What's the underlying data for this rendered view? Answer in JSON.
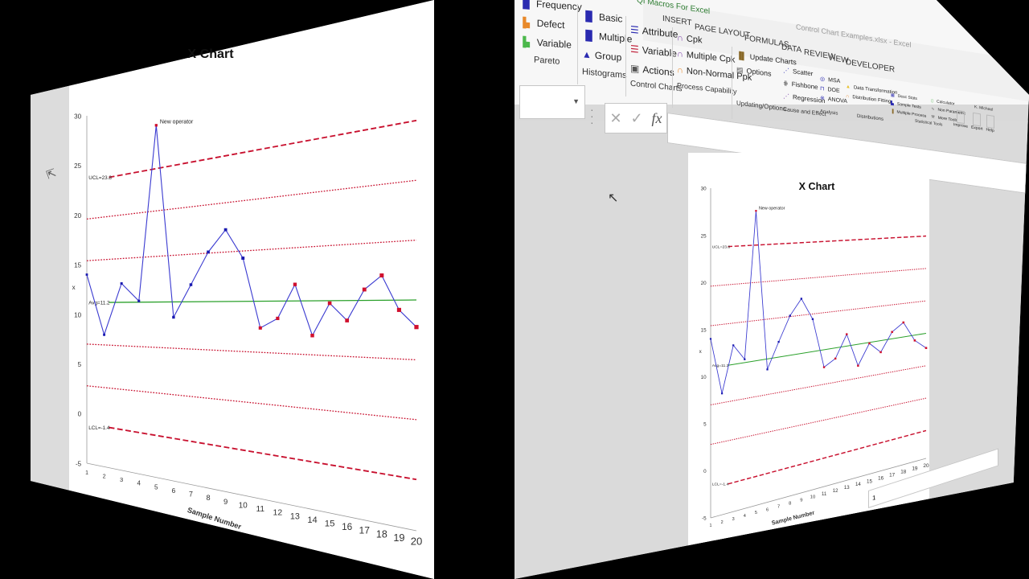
{
  "window": {
    "title": "Control Chart Examples.xlsx - Excel",
    "quick_access_hint": "QI Macros For Excel"
  },
  "ribbon": {
    "active_tab": "QI Macros For Excel",
    "tabs": [
      "INSERT",
      "PAGE LAYOUT",
      "FORMULAS",
      "DATA",
      "REVIEW",
      "VIEW",
      "DEVELOPER"
    ],
    "groups": [
      {
        "label": "Pareto",
        "items": [
          {
            "icon": "frequency-pareto-icon",
            "label": "Frequency",
            "color": "#2a2ab0"
          },
          {
            "icon": "defect-pareto-icon",
            "label": "Defect",
            "color": "#e8892a"
          },
          {
            "icon": "variable-pareto-icon",
            "label": "Variable",
            "color": "#4cb84c"
          }
        ]
      },
      {
        "label": "Histograms",
        "items": [
          {
            "icon": "basic-histogram-icon",
            "label": "Basic",
            "color": "#2a2ab0"
          },
          {
            "icon": "multiple-histogram-icon",
            "label": "Multiple",
            "color": "#2a2ab0"
          },
          {
            "icon": "group-histogram-icon",
            "label": "Group",
            "color": "#2a2ab0"
          }
        ]
      },
      {
        "label": "Control Charts",
        "items": [
          {
            "icon": "attribute-chart-icon",
            "label": "Attribute",
            "color": "#2a2ab0"
          },
          {
            "icon": "variable-chart-icon",
            "label": "Variable",
            "color": "#c0203a"
          },
          {
            "icon": "actions-icon",
            "label": "Actions",
            "color": "#555555"
          }
        ]
      },
      {
        "label": "Process Capability",
        "items": [
          {
            "icon": "cpk-icon",
            "label": "Cpk",
            "color": "#7a3aa8"
          },
          {
            "icon": "multiple-cpk-icon",
            "label": "Multiple Cpk",
            "color": "#7a3aa8"
          },
          {
            "icon": "non-normal-ppk-icon",
            "label": "Non-Normal Ppk",
            "color": "#e8892a"
          }
        ]
      },
      {
        "label": "Updating/Options",
        "items": [
          {
            "icon": "update-charts-icon",
            "label": "Update Charts",
            "color": "#8a6a2a"
          },
          {
            "icon": "options-icon",
            "label": "Options",
            "color": "#555555"
          }
        ]
      },
      {
        "label": "Cause and Effect",
        "items": [
          {
            "icon": "scatter-icon",
            "label": "Scatter",
            "color": "#2a2ab0"
          },
          {
            "icon": "fishbone-icon",
            "label": "Fishbone",
            "color": "#555555"
          },
          {
            "icon": "regression-icon",
            "label": "Regression",
            "color": "#7a3aa8"
          }
        ]
      },
      {
        "label": "Analysis",
        "items": [
          {
            "icon": "msa-icon",
            "label": "MSA",
            "color": "#2a2ab0"
          },
          {
            "icon": "doe-icon",
            "label": "DOE",
            "color": "#2a2ab0"
          },
          {
            "icon": "anova-icon",
            "label": "ANOVA",
            "color": "#2a2ab0"
          }
        ]
      },
      {
        "label": "Distributions",
        "items": [
          {
            "icon": "data-transformation-icon",
            "label": "Data Transformation",
            "color": "#e8c02a"
          },
          {
            "icon": "distribution-fitting-icon",
            "label": "Distribution Fitting",
            "color": "#e8892a"
          }
        ]
      },
      {
        "label": "Statistical Tools",
        "items": [
          {
            "icon": "desc-stats-icon",
            "label": "Desc Stats",
            "color": "#2a2ab0"
          },
          {
            "icon": "sample-tests-icon",
            "label": "Sample Tests",
            "color": "#2a2ab0"
          },
          {
            "icon": "multiple-process-icon",
            "label": "Multiple Process",
            "color": "#8a6a2a"
          },
          {
            "icon": "calculator-icon",
            "label": "Calculator",
            "color": "#4cb84c"
          },
          {
            "icon": "non-parametric-icon",
            "label": "Non Parametric",
            "color": "#555555"
          },
          {
            "icon": "more-tools-icon",
            "label": "More Tools",
            "color": "#555555"
          }
        ]
      },
      {
        "label": "",
        "items": [
          {
            "icon": "improve-icon",
            "label": "Improve",
            "color": "#999999"
          },
          {
            "icon": "export-icon",
            "label": "Export",
            "color": "#999999"
          },
          {
            "icon": "help-icon",
            "label": "Help",
            "color": "#999999"
          }
        ]
      }
    ],
    "user": "K. Michael"
  },
  "formula_bar": {
    "name_box": "",
    "cancel_symbol": "✕",
    "enter_symbol": "✓",
    "fx_symbol": "fx",
    "value": ""
  },
  "status_bar": {
    "sheet_selector": "1"
  },
  "chart_data": {
    "type": "line",
    "title": "X Chart",
    "xlabel": "Sample Number",
    "ylabel": "x",
    "ylim": [
      -5,
      30
    ],
    "yticks": [
      -5,
      0,
      5,
      10,
      15,
      20,
      25,
      30
    ],
    "x": [
      1,
      2,
      3,
      4,
      5,
      6,
      7,
      8,
      9,
      10,
      11,
      12,
      13,
      14,
      15,
      16,
      17,
      18,
      19,
      20
    ],
    "series": [
      {
        "name": "x",
        "values": [
          14.0,
          8.0,
          13.0,
          11.3,
          27.5,
          9.8,
          12.7,
          15.5,
          17.3,
          14.8,
          9.0,
          9.8,
          12.5,
          8.5,
          11.0,
          9.7,
          12.0,
          13.0,
          10.5,
          9.3
        ],
        "flagged_points": [
          5,
          11,
          12,
          13,
          14,
          15,
          16,
          17,
          18,
          19,
          20
        ]
      }
    ],
    "control_lines": {
      "UCL": {
        "value": 23.8,
        "label": "UCL=23.8",
        "style": "dashed",
        "color": "#c8102e"
      },
      "plus2sigma": {
        "value": 19.6,
        "style": "dotted",
        "color": "#c8102e"
      },
      "plus1sigma": {
        "value": 15.4,
        "style": "dotted",
        "color": "#c8102e"
      },
      "Avg": {
        "value": 11.2,
        "label": "Avg=11.2",
        "style": "solid",
        "color": "#2aa02a"
      },
      "minus1sigma": {
        "value": 7.0,
        "style": "dotted",
        "color": "#c8102e"
      },
      "minus2sigma": {
        "value": 2.8,
        "style": "dotted",
        "color": "#c8102e"
      },
      "LCL": {
        "value": -1.4,
        "label": "LCL=-1.4",
        "style": "dashed",
        "color": "#c8102e"
      }
    },
    "annotations": [
      {
        "x": 5,
        "text": "New operator"
      }
    ],
    "colors": {
      "line": "#3a3ad0",
      "normal_point": "#1a1ab0",
      "flag_point": "#d0102e"
    },
    "grid": false,
    "legend": "none"
  }
}
